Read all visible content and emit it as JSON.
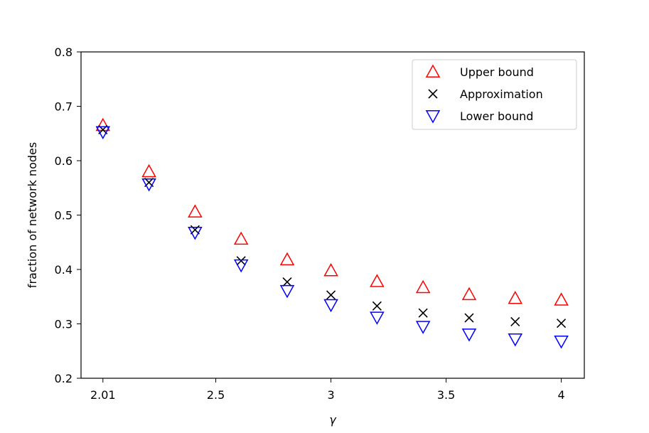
{
  "chart_data": {
    "type": "scatter",
    "xlabel": "γ",
    "ylabel": "fraction of network nodes",
    "xlim": [
      1.915,
      4.1
    ],
    "ylim": [
      0.2,
      0.8
    ],
    "x_ticks": [
      2.01,
      2.5,
      3,
      3.5,
      4
    ],
    "x_tick_labels": [
      "2.01",
      "2.5",
      "3",
      "3.5",
      "4"
    ],
    "y_ticks": [
      0.2,
      0.3,
      0.4,
      0.5,
      0.6,
      0.7,
      0.8
    ],
    "y_tick_labels": [
      "0.2",
      "0.3",
      "0.4",
      "0.5",
      "0.6",
      "0.7",
      "0.8"
    ],
    "grid": false,
    "legend_position": "top-right",
    "x": [
      2.01,
      2.21,
      2.41,
      2.61,
      2.81,
      3.0,
      3.2,
      3.4,
      3.6,
      3.8,
      4.0
    ],
    "series": [
      {
        "name": "Upper bound",
        "marker": "triangle-up",
        "color": "#ff0000",
        "values": [
          0.665,
          0.58,
          0.506,
          0.456,
          0.418,
          0.398,
          0.378,
          0.367,
          0.354,
          0.347,
          0.344
        ]
      },
      {
        "name": "Approximation",
        "marker": "x",
        "color": "#000000",
        "values": [
          0.657,
          0.56,
          0.473,
          0.416,
          0.377,
          0.353,
          0.333,
          0.32,
          0.311,
          0.304,
          0.301
        ]
      },
      {
        "name": "Lower bound",
        "marker": "triangle-down",
        "color": "#0000ff",
        "values": [
          0.653,
          0.557,
          0.468,
          0.408,
          0.361,
          0.335,
          0.312,
          0.295,
          0.281,
          0.272,
          0.268
        ]
      }
    ]
  }
}
